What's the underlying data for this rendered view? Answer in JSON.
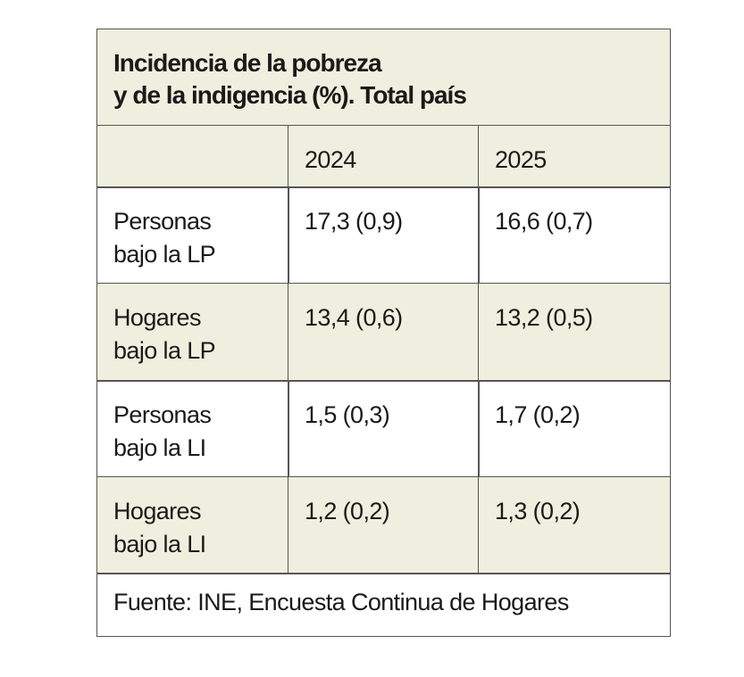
{
  "title": [
    "Incidencia de la pobreza",
    "y de la indigencia (%). Total país"
  ],
  "table": {
    "header": [
      "2024",
      "2025"
    ],
    "rows": [
      [
        [
          "Personas",
          "bajo la LP"
        ],
        "17,3 (0,9)",
        "16,6 (0,7)"
      ],
      [
        [
          "Hogares",
          "bajo la LP"
        ],
        "13,4 (0,6)",
        "13,2 (0,5)"
      ],
      [
        [
          "Personas",
          "bajo la LI"
        ],
        "1,5 (0,3)",
        "1,7 (0,2)"
      ],
      [
        [
          "Hogares",
          "bajo la LI"
        ],
        "1,2 (0,2)",
        "1,3 (0,2)"
      ]
    ]
  },
  "source": "Fuente: INE, Encuesta Continua de Hogares"
}
